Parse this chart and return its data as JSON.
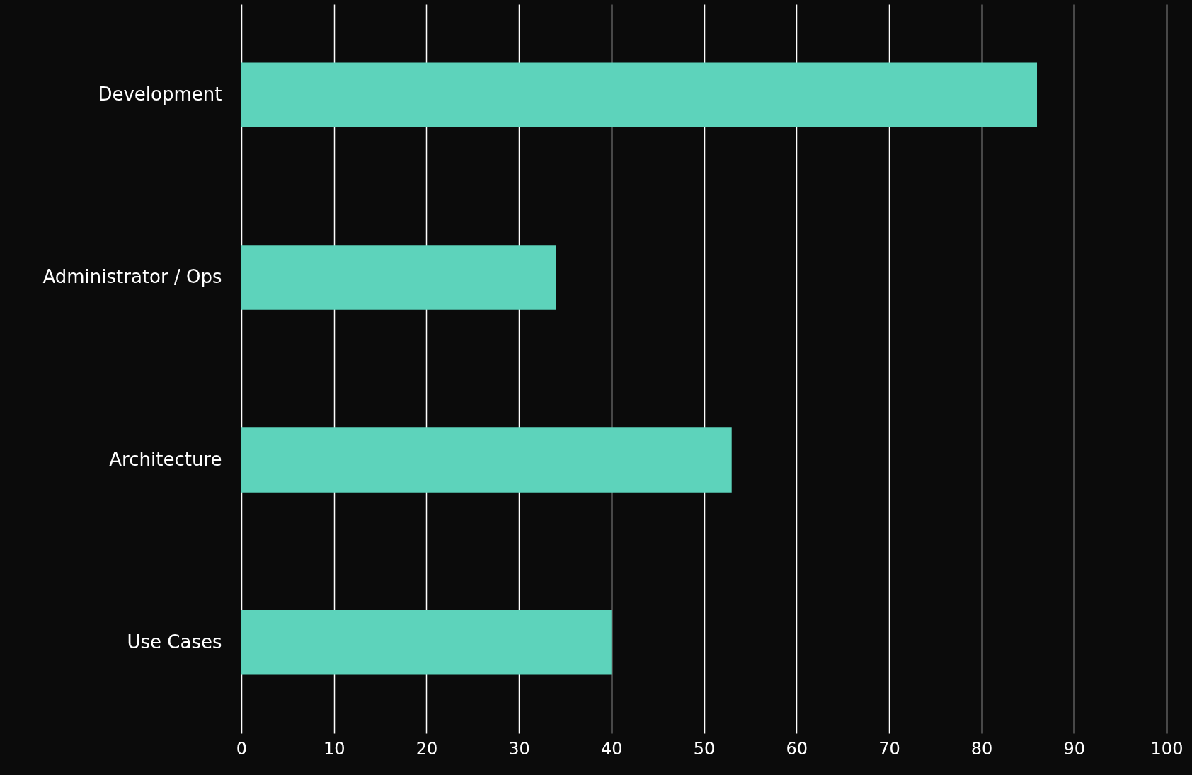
{
  "chart_data": {
    "type": "bar",
    "orientation": "horizontal",
    "categories": [
      "Development",
      "Administrator / Ops",
      "Architecture",
      "Use Cases"
    ],
    "values": [
      86,
      34,
      53,
      40
    ],
    "color": "#5dd3bb",
    "xlim": [
      0,
      100
    ],
    "xticks": [
      0,
      10,
      20,
      30,
      40,
      50,
      60,
      70,
      80,
      90,
      100
    ],
    "grid": "x"
  }
}
